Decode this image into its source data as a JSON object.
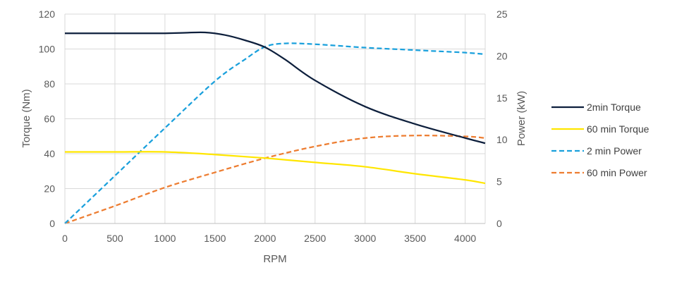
{
  "chart_data": {
    "type": "line",
    "title": "",
    "xlabel": "RPM",
    "ylabel": "Torque (Nm)",
    "y2label": "Power (kW)",
    "xlim": [
      0,
      4200
    ],
    "ylim": [
      0,
      120
    ],
    "y2lim": [
      0,
      25
    ],
    "xticks": [
      0,
      500,
      1000,
      1500,
      2000,
      2500,
      3000,
      3500,
      4000
    ],
    "yticks": [
      0,
      20,
      40,
      60,
      80,
      100,
      120
    ],
    "y2ticks": [
      0,
      5,
      10,
      15,
      20,
      25
    ],
    "grid": true,
    "legend_position": "right",
    "series": [
      {
        "name": "2min Torque",
        "axis": "left",
        "color": "#0d1f3c",
        "dash": "solid",
        "x": [
          0,
          500,
          1000,
          1200,
          1400,
          1600,
          1800,
          2000,
          2200,
          2500,
          3000,
          3500,
          4000,
          4200
        ],
        "y": [
          109,
          109,
          109,
          109.3,
          109.5,
          108,
          105,
          101,
          94,
          82,
          67,
          57,
          49,
          46
        ]
      },
      {
        "name": "60 min Torque",
        "axis": "left",
        "color": "#ffe600",
        "dash": "solid",
        "x": [
          0,
          500,
          1000,
          1500,
          2000,
          2500,
          3000,
          3500,
          4000,
          4200
        ],
        "y": [
          41,
          41,
          41,
          39.5,
          37.5,
          35,
          32.5,
          28.5,
          25,
          23
        ]
      },
      {
        "name": "2 min Power",
        "axis": "right",
        "color": "#1aa0dc",
        "dash": "dashed",
        "x": [
          0,
          500,
          1000,
          1500,
          1800,
          2000,
          2200,
          2500,
          3000,
          3500,
          4000,
          4200
        ],
        "y": [
          0,
          5.7,
          11.4,
          17,
          19.6,
          21.1,
          21.5,
          21.4,
          21,
          20.7,
          20.4,
          20.2
        ]
      },
      {
        "name": "60 min Power",
        "axis": "right",
        "color": "#ed7d31",
        "dash": "dashed",
        "x": [
          0,
          500,
          1000,
          1500,
          2000,
          2500,
          3000,
          3500,
          4000,
          4200
        ],
        "y": [
          0,
          2.1,
          4.3,
          6.1,
          7.8,
          9.2,
          10.2,
          10.5,
          10.4,
          10.2
        ]
      }
    ]
  }
}
